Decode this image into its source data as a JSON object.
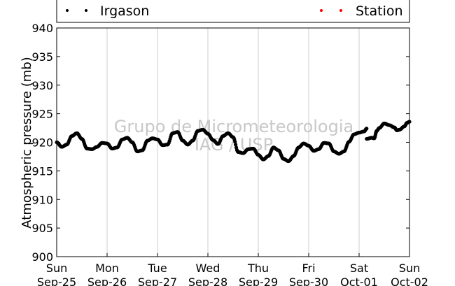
{
  "chart_data": {
    "type": "scatter",
    "ylabel": "Atmospheric pressure (mb)",
    "ylim": [
      900,
      940
    ],
    "yticks": [
      900,
      905,
      910,
      915,
      920,
      925,
      930,
      935,
      940
    ],
    "xlim": [
      0,
      7
    ],
    "x_unit": "days from Sun Sep-25 00:00",
    "xticks": [
      {
        "value": 0,
        "day": "Sun",
        "date": "Sep-25"
      },
      {
        "value": 1,
        "day": "Mon",
        "date": "Sep-26"
      },
      {
        "value": 2,
        "day": "Tue",
        "date": "Sep-27"
      },
      {
        "value": 3,
        "day": "Wed",
        "date": "Sep-28"
      },
      {
        "value": 4,
        "day": "Thu",
        "date": "Sep-29"
      },
      {
        "value": 5,
        "day": "Fri",
        "date": "Sep-30"
      },
      {
        "value": 6,
        "day": "Sat",
        "date": "Oct-01"
      },
      {
        "value": 7,
        "day": "Sun",
        "date": "Oct-02"
      }
    ],
    "grid": {
      "vertical": true,
      "horizontal": false
    },
    "legend": {
      "placement": "top",
      "entries": [
        {
          "label": "Irgason",
          "color": "#000000"
        },
        {
          "label": "Station",
          "color": "#ff0000"
        }
      ]
    },
    "watermark": [
      "Grupo de Micrometeorologia",
      "IAG / USP"
    ],
    "series": [
      {
        "name": "Irgason",
        "color": "#000000",
        "points": [
          [
            0.0,
            920.0
          ],
          [
            0.1,
            919.2
          ],
          [
            0.2,
            919.6
          ],
          [
            0.3,
            921.1
          ],
          [
            0.4,
            921.6
          ],
          [
            0.5,
            920.6
          ],
          [
            0.6,
            918.9
          ],
          [
            0.7,
            918.8
          ],
          [
            0.8,
            919.2
          ],
          [
            0.9,
            919.9
          ],
          [
            1.0,
            919.8
          ],
          [
            1.1,
            918.9
          ],
          [
            1.2,
            919.1
          ],
          [
            1.3,
            920.5
          ],
          [
            1.4,
            920.8
          ],
          [
            1.5,
            920.0
          ],
          [
            1.6,
            918.4
          ],
          [
            1.7,
            918.6
          ],
          [
            1.8,
            920.3
          ],
          [
            1.9,
            920.7
          ],
          [
            2.0,
            920.5
          ],
          [
            2.1,
            919.5
          ],
          [
            2.2,
            919.6
          ],
          [
            2.3,
            921.6
          ],
          [
            2.4,
            921.8
          ],
          [
            2.5,
            920.3
          ],
          [
            2.6,
            919.6
          ],
          [
            2.7,
            920.3
          ],
          [
            2.8,
            922.0
          ],
          [
            2.9,
            922.2
          ],
          [
            3.0,
            921.5
          ],
          [
            3.1,
            920.4
          ],
          [
            3.2,
            919.7
          ],
          [
            3.3,
            921.1
          ],
          [
            3.4,
            921.6
          ],
          [
            3.5,
            920.9
          ],
          [
            3.6,
            918.3
          ],
          [
            3.7,
            918.1
          ],
          [
            3.8,
            918.8
          ],
          [
            3.9,
            918.9
          ],
          [
            4.0,
            917.8
          ],
          [
            4.1,
            917.0
          ],
          [
            4.2,
            917.6
          ],
          [
            4.3,
            919.1
          ],
          [
            4.4,
            918.6
          ],
          [
            4.5,
            917.1
          ],
          [
            4.6,
            916.7
          ],
          [
            4.7,
            917.6
          ],
          [
            4.8,
            919.1
          ],
          [
            4.9,
            919.8
          ],
          [
            5.0,
            919.4
          ],
          [
            5.1,
            918.5
          ],
          [
            5.2,
            918.8
          ],
          [
            5.3,
            919.9
          ],
          [
            5.4,
            919.8
          ],
          [
            5.5,
            918.4
          ],
          [
            5.6,
            918.0
          ],
          [
            5.7,
            918.4
          ],
          [
            5.8,
            920.1
          ],
          [
            5.9,
            921.4
          ],
          [
            6.0,
            921.7
          ],
          [
            6.1,
            921.9
          ],
          [
            6.15,
            922.4
          ],
          [
            6.15,
            920.6
          ],
          [
            6.25,
            920.8
          ],
          [
            6.3,
            920.7
          ],
          [
            6.35,
            922.0
          ],
          [
            6.4,
            922.5
          ],
          [
            6.5,
            923.3
          ],
          [
            6.6,
            923.0
          ],
          [
            6.7,
            922.6
          ],
          [
            6.75,
            922.1
          ],
          [
            6.8,
            922.2
          ],
          [
            6.9,
            922.8
          ],
          [
            6.95,
            923.4
          ],
          [
            7.0,
            923.6
          ]
        ]
      }
    ]
  }
}
